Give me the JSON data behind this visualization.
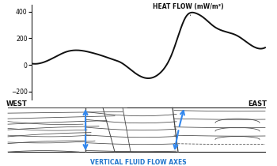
{
  "heat_flow_label": "HEAT FLOW (mW/m²)",
  "west_label": "WEST",
  "east_label": "EAST",
  "fluid_label": "VERTICAL FLUID FLOW AXES",
  "yticks": [
    -200,
    0,
    200,
    400
  ],
  "ylim": [
    -260,
    450
  ],
  "curve_color": "#111111",
  "arrow_color": "#3388ee",
  "bg_color": "#ffffff",
  "label_color": "#2277cc",
  "annotation_color": "#111111",
  "heat_flow_x": [
    0.0,
    0.05,
    0.1,
    0.15,
    0.2,
    0.25,
    0.3,
    0.35,
    0.38,
    0.42,
    0.46,
    0.5,
    0.55,
    0.6,
    0.63,
    0.66,
    0.7,
    0.74,
    0.78,
    0.83,
    0.88,
    0.93,
    1.0
  ],
  "heat_flow_y": [
    10,
    20,
    60,
    100,
    110,
    95,
    70,
    40,
    20,
    -30,
    -80,
    -100,
    -60,
    80,
    230,
    360,
    390,
    350,
    290,
    250,
    220,
    160,
    130
  ]
}
